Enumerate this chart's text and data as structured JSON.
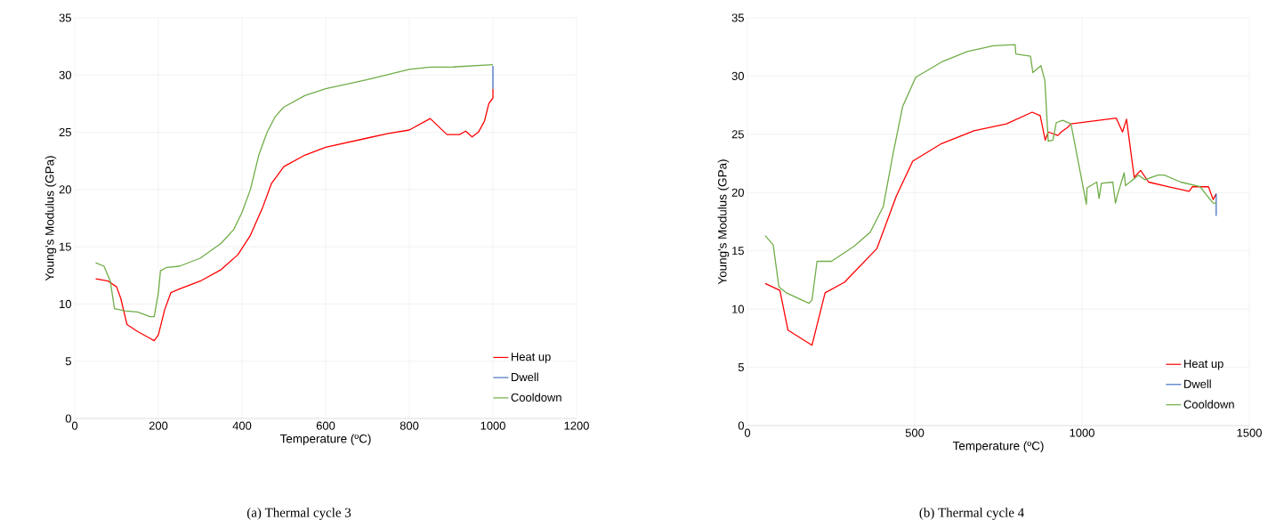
{
  "chart_data": [
    {
      "type": "line",
      "xlabel": "Temperature (ºC)",
      "ylabel": "Young's Modulus (GPa)",
      "xlim": [
        0,
        1200
      ],
      "xticks": [
        0,
        200,
        400,
        600,
        800,
        1000,
        1200
      ],
      "ylim": [
        0,
        35
      ],
      "yticks": [
        0,
        5,
        10,
        15,
        20,
        25,
        30,
        35
      ],
      "grid": true,
      "legend": "bottom right",
      "annotations": [
        "(a) Thermal cycle 3"
      ],
      "series": [
        {
          "name": "Heat up",
          "color": "#ff0000",
          "x": [
            50,
            80,
            100,
            110,
            125,
            150,
            180,
            190,
            200,
            215,
            230,
            250,
            300,
            350,
            390,
            420,
            450,
            470,
            500,
            550,
            600,
            700,
            750,
            800,
            850,
            870,
            890,
            920,
            935,
            950,
            965,
            980,
            990,
            1000,
            1000
          ],
          "values": [
            12.2,
            12.0,
            11.5,
            10.5,
            8.2,
            7.6,
            7.0,
            6.8,
            7.3,
            9.5,
            11.0,
            11.3,
            12.0,
            13.0,
            14.3,
            16.0,
            18.5,
            20.5,
            22.0,
            23.0,
            23.7,
            24.5,
            24.9,
            25.2,
            26.2,
            25.5,
            24.8,
            24.8,
            25.1,
            24.6,
            25.0,
            26.0,
            27.5,
            28.0,
            28.8
          ]
        },
        {
          "name": "Dwell",
          "color": "#4472c4",
          "x": [
            1000,
            1000
          ],
          "values": [
            28.8,
            30.8
          ]
        },
        {
          "name": "Cooldown",
          "color": "#70ad47",
          "x": [
            50,
            70,
            85,
            95,
            120,
            150,
            180,
            190,
            200,
            205,
            220,
            250,
            300,
            350,
            380,
            400,
            420,
            440,
            460,
            480,
            500,
            550,
            600,
            700,
            800,
            850,
            900,
            950,
            1000
          ],
          "values": [
            13.6,
            13.3,
            12.0,
            9.6,
            9.4,
            9.3,
            8.9,
            8.9,
            11.0,
            12.9,
            13.2,
            13.3,
            14.0,
            15.3,
            16.5,
            18.0,
            20.0,
            23.0,
            25.0,
            26.4,
            27.2,
            28.2,
            28.8,
            29.6,
            30.5,
            30.7,
            30.7,
            30.8,
            30.9
          ]
        }
      ]
    },
    {
      "type": "line",
      "xlabel": "Temperature (ºC)",
      "ylabel": "Young's Modulus (GPa)",
      "xlim": [
        0,
        1500
      ],
      "xticks": [
        0,
        500,
        1000,
        1500
      ],
      "ylim": [
        0,
        35
      ],
      "yticks": [
        0,
        5,
        10,
        15,
        20,
        25,
        30,
        35
      ],
      "grid": true,
      "legend": "bottom right",
      "annotations": [
        "(b) Thermal cycle 4"
      ],
      "series": [
        {
          "name": "Heat up",
          "color": "#ff0000",
          "x": [
            53,
            97,
            121,
            193,
            232,
            290,
            387,
            445,
            494,
            580,
            677,
            774,
            851,
            875,
            890,
            899,
            928,
            938,
            957,
            967,
            1102,
            1121,
            1133,
            1156,
            1175,
            1199,
            1257,
            1320,
            1330,
            1378,
            1392,
            1401
          ],
          "values": [
            12.2,
            11.6,
            8.2,
            6.9,
            11.4,
            12.3,
            15.2,
            19.7,
            22.7,
            24.2,
            25.3,
            25.9,
            26.9,
            26.6,
            24.5,
            25.2,
            24.9,
            25.2,
            25.6,
            25.9,
            26.4,
            25.2,
            26.3,
            21.3,
            21.9,
            20.9,
            20.5,
            20.1,
            20.5,
            20.5,
            19.4,
            19.9
          ]
        },
        {
          "name": "Dwell",
          "color": "#4472c4",
          "x": [
            1401,
            1401
          ],
          "values": [
            19.9,
            18.0
          ]
        },
        {
          "name": "Cooldown",
          "color": "#70ad47",
          "x": [
            53,
            77,
            94,
            116,
            184,
            193,
            208,
            251,
            319,
            367,
            406,
            435,
            464,
            503,
            580,
            657,
            735,
            800,
            802,
            846,
            853,
            877,
            889,
            899,
            913,
            923,
            942,
            967,
            1013,
            1015,
            1044,
            1051,
            1058,
            1092,
            1100,
            1106,
            1126,
            1130,
            1169,
            1188,
            1227,
            1246,
            1295,
            1353,
            1372,
            1392,
            1401
          ],
          "values": [
            16.3,
            15.5,
            11.9,
            11.4,
            10.5,
            10.8,
            14.1,
            14.1,
            15.4,
            16.6,
            18.8,
            23.3,
            27.4,
            29.9,
            31.2,
            32.1,
            32.6,
            32.7,
            31.9,
            31.7,
            30.3,
            30.9,
            29.6,
            24.4,
            24.5,
            26.0,
            26.2,
            25.9,
            19.0,
            20.4,
            20.9,
            19.5,
            20.8,
            20.9,
            19.1,
            19.8,
            21.7,
            20.6,
            21.5,
            21.1,
            21.5,
            21.5,
            20.9,
            20.5,
            19.8,
            19.1,
            19.1
          ]
        }
      ]
    }
  ]
}
